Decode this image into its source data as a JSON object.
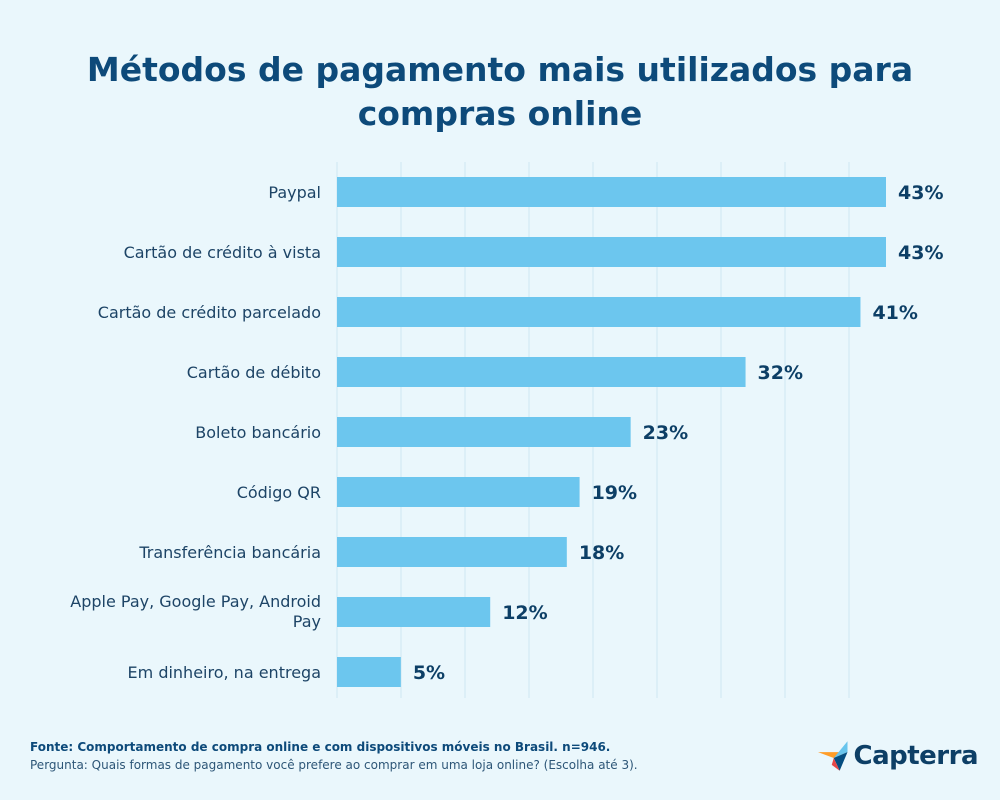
{
  "title": "Métodos de pagamento mais utilizados para compras online",
  "chart_data": {
    "type": "bar",
    "orientation": "horizontal",
    "categories": [
      "Paypal",
      "Cartão de crédito à vista",
      "Cartão de crédito parcelado",
      "Cartão de débito",
      "Boleto bancário",
      "Código QR",
      "Transferência bancária",
      "Apple Pay, Google Pay, Android Pay",
      "Em dinheiro, na entrega"
    ],
    "values": [
      43,
      43,
      41,
      32,
      23,
      19,
      18,
      12,
      5
    ],
    "value_labels": [
      "43%",
      "43%",
      "41%",
      "32%",
      "23%",
      "19%",
      "18%",
      "12%",
      "5%"
    ],
    "unit": "%",
    "xlim": [
      0,
      43
    ],
    "grid": true,
    "bar_color": "#6cc6ee"
  },
  "footer": {
    "source": "Fonte: Comportamento de compra online e com dispositivos móveis no Brasil. n=946.",
    "question": "Pergunta: Quais formas de pagamento você prefere ao comprar em uma loja online? (Escolha até 3)."
  },
  "logo": {
    "text": "Capterra",
    "icon": "capterra-arrow-icon"
  }
}
